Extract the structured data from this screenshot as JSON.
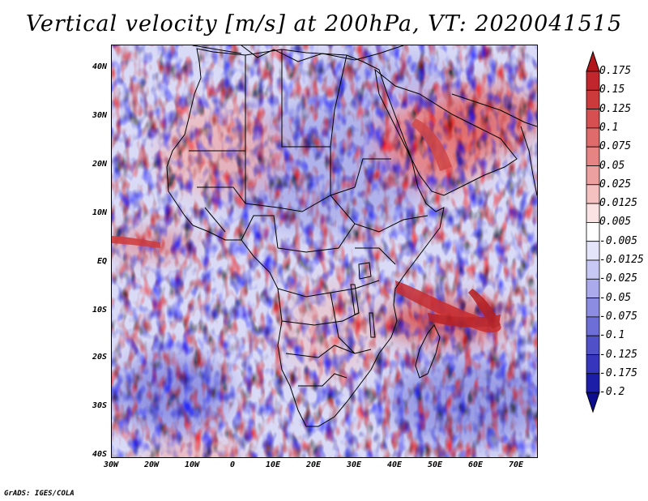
{
  "title": "Vertical velocity [m/s] at 200hPa, VT: 2020041515",
  "credit": "GrADS: IGES/COLA",
  "map": {
    "lon_range": [
      -30,
      75
    ],
    "lat_range": [
      -40,
      45
    ],
    "lat_labels": [
      "40N",
      "30N",
      "20N",
      "10N",
      "EQ",
      "10S",
      "20S",
      "30S",
      "40S"
    ],
    "lon_labels": [
      "30W",
      "20W",
      "10W",
      "0",
      "10E",
      "20E",
      "30E",
      "40E",
      "50E",
      "60E",
      "70E"
    ],
    "colors": {
      "neutral": "#ffffff",
      "pos_light": "#f3c4c4",
      "pos_mid": "#e88a8a",
      "pos_dark": "#b41e1e",
      "neg_light": "#cccdf3",
      "neg_mid": "#8f90e3",
      "neg_dark": "#3b3bbf",
      "boundary": "#000000"
    }
  },
  "colorbar": {
    "labels": [
      "0.175",
      "0.15",
      "0.125",
      "0.1",
      "0.075",
      "0.05",
      "0.025",
      "0.0125",
      "0.005",
      "-0.005",
      "-0.0125",
      "-0.025",
      "-0.05",
      "-0.075",
      "-0.1",
      "-0.125",
      "-0.175",
      "-0.2"
    ],
    "colors": [
      "#b2181b",
      "#c0262b",
      "#cc3a3c",
      "#d65051",
      "#df6b6b",
      "#e68484",
      "#eda0a0",
      "#f4c0c0",
      "#fbe3e3",
      "#ffffff",
      "#e4e4fa",
      "#c7c8f4",
      "#aaaaec",
      "#8b8ce2",
      "#6d6ed6",
      "#5051c9",
      "#3536bb",
      "#1d1ea8",
      "#0c0c8f"
    ]
  }
}
